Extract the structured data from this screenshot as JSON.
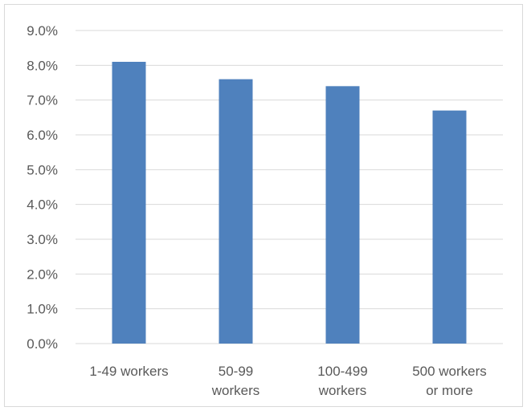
{
  "chart_data": {
    "type": "bar",
    "categories": [
      [
        "1-49 workers"
      ],
      [
        "50-99",
        "workers"
      ],
      [
        "100-499",
        "workers"
      ],
      [
        "500 workers",
        "or more"
      ]
    ],
    "values": [
      8.1,
      7.6,
      7.4,
      6.7
    ],
    "ylim": [
      0,
      9
    ],
    "yticks": [
      "0.0%",
      "1.0%",
      "2.0%",
      "3.0%",
      "4.0%",
      "5.0%",
      "6.0%",
      "7.0%",
      "8.0%",
      "9.0%"
    ],
    "grid": true,
    "legend": "none",
    "bar_color": "#4f81bd",
    "grid_color": "#d9d9d9"
  }
}
